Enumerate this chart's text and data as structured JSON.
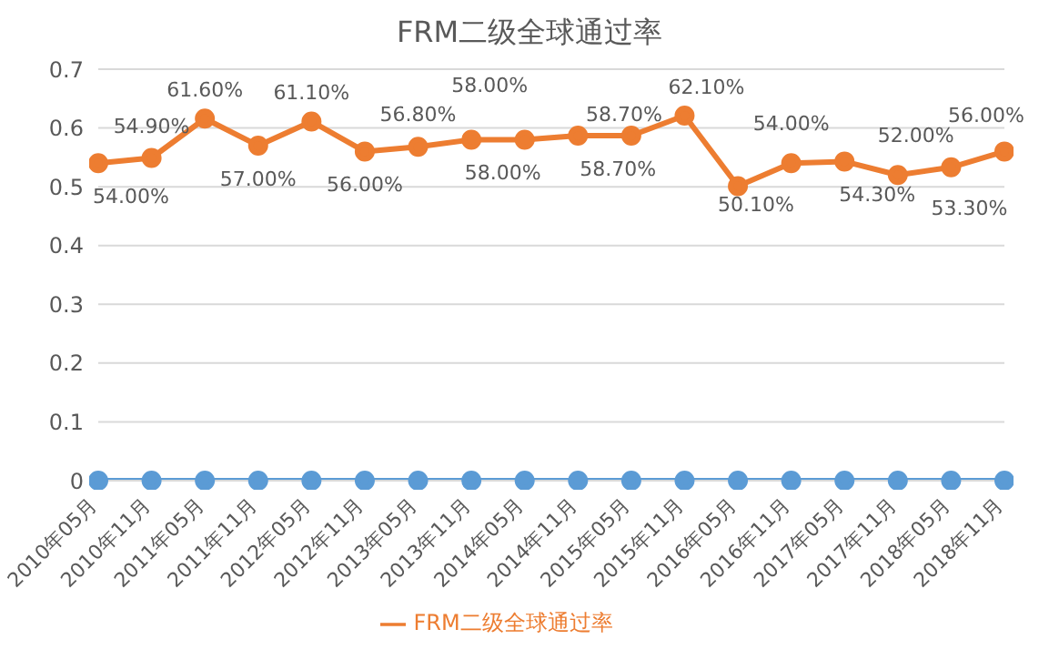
{
  "chart_data": {
    "type": "line",
    "title": "FRM二级全球通过率",
    "categories": [
      "2010年05月",
      "2010年11月",
      "2011年05月",
      "2011年11月",
      "2012年05月",
      "2012年11月",
      "2013年05月",
      "2013年11月",
      "2014年05月",
      "2014年11月",
      "2015年05月",
      "2015年11月",
      "2016年05月",
      "2016年11月",
      "2017年05月",
      "2017年11月",
      "2018年05月",
      "2018年11月"
    ],
    "series": [
      {
        "name": "FRM二级全球通过率",
        "color": "#ed7d31",
        "values": [
          0.54,
          0.549,
          0.616,
          0.57,
          0.611,
          0.56,
          0.568,
          0.58,
          0.58,
          0.587,
          0.587,
          0.621,
          0.501,
          0.54,
          0.543,
          0.52,
          0.533,
          0.56
        ],
        "value_labels": [
          "54.00%",
          "54.90%",
          "61.60%",
          "57.00%",
          "61.10%",
          "56.00%",
          "56.80%",
          "58.00%",
          "58.00%",
          "58.70%",
          "58.70%",
          "62.10%",
          "50.10%",
          "54.00%",
          "54.30%",
          "52.00%",
          "53.30%",
          "56.00%"
        ]
      },
      {
        "color": "#5b9bd5",
        "values": [
          0,
          0,
          0,
          0,
          0,
          0,
          0,
          0,
          0,
          0,
          0,
          0,
          0,
          0,
          0,
          0,
          0,
          0
        ]
      }
    ],
    "ylim": [
      0,
      0.7
    ],
    "yticks": [
      0,
      0.1,
      0.2,
      0.3,
      0.4,
      0.5,
      0.6,
      0.7
    ],
    "grid": "y",
    "legend": "bottom",
    "marker": "circle",
    "line_style": "solid"
  }
}
